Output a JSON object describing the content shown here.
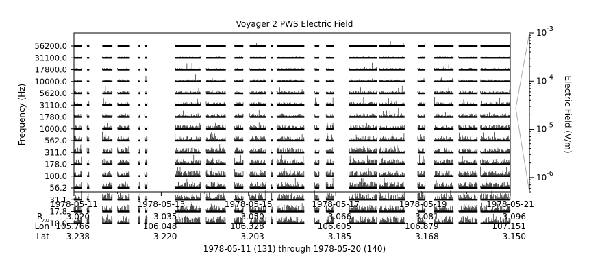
{
  "chart_data": {
    "type": "line",
    "title": "Voyager 2 PWS Electric Field",
    "ylabel": "Frequency (Hz)",
    "y2label": "Electric Field (V/m)",
    "xlabel": "1978-05-11 (131) through 1978-05-20 (140)",
    "channels": [
      "56200.0",
      "31100.0",
      "17800.0",
      "10000.0",
      "5620.0",
      "3110.0",
      "1780.0",
      "1000.0",
      "562.0",
      "311.0",
      "178.0",
      "100.0",
      "56.2",
      "31.1",
      "17.8",
      "10.0"
    ],
    "ytick_labels": [
      "56200.0",
      "31100.0",
      "17800.0",
      "10000.0",
      "5620.0",
      "3110.0",
      "1780.0",
      "1000.0",
      "562.0",
      "311.0",
      "178.0",
      "100.0",
      "56.2",
      "31.1",
      "17.8",
      "10.0"
    ],
    "y2_scale": "log",
    "y2_range": [
      5e-07,
      0.001
    ],
    "y2_ticks": [
      {
        "mantissa": "10",
        "exp": "-3"
      },
      {
        "mantissa": "10",
        "exp": "-4"
      },
      {
        "mantissa": "10",
        "exp": "-5"
      },
      {
        "mantissa": "10",
        "exp": "-6"
      }
    ],
    "x_range": [
      "1978-05-11",
      "1978-05-21"
    ],
    "x_ticks": [
      {
        "date": "1978-05-11",
        "r_au": "3.020",
        "lon": "105.766",
        "lat": "3.238"
      },
      {
        "date": "1978-05-13",
        "r_au": "3.035",
        "lon": "106.048",
        "lat": "3.220"
      },
      {
        "date": "1978-05-15",
        "r_au": "3.050",
        "lon": "106.328",
        "lat": "3.203"
      },
      {
        "date": "1978-05-17",
        "r_au": "3.066",
        "lon": "106.605",
        "lat": "3.185"
      },
      {
        "date": "1978-05-19",
        "r_au": "3.081",
        "lon": "106.879",
        "lat": "3.168"
      },
      {
        "date": "1978-05-21",
        "r_au": "3.096",
        "lon": "107.151",
        "lat": "3.150"
      }
    ],
    "row_labels": {
      "r": "R",
      "r_sub": "AU",
      "lon": "Lon",
      "lat": "Lat"
    },
    "data_segments_days": [
      [
        0.0,
        0.18
      ],
      [
        0.3,
        0.35
      ],
      [
        0.65,
        0.88
      ],
      [
        1.0,
        1.28
      ],
      [
        1.48,
        1.52
      ],
      [
        1.62,
        1.68
      ],
      [
        2.32,
        2.9
      ],
      [
        3.03,
        3.48
      ],
      [
        3.68,
        3.88
      ],
      [
        4.03,
        4.4
      ],
      [
        4.52,
        4.56
      ],
      [
        4.65,
        5.28
      ],
      [
        5.52,
        5.62
      ],
      [
        5.78,
        5.95
      ],
      [
        6.3,
        6.95
      ],
      [
        7.0,
        7.58
      ],
      [
        7.88,
        8.05
      ],
      [
        8.25,
        8.7
      ],
      [
        8.82,
        9.25
      ],
      [
        9.32,
        10.0
      ]
    ],
    "grid": false,
    "legend": "none"
  }
}
